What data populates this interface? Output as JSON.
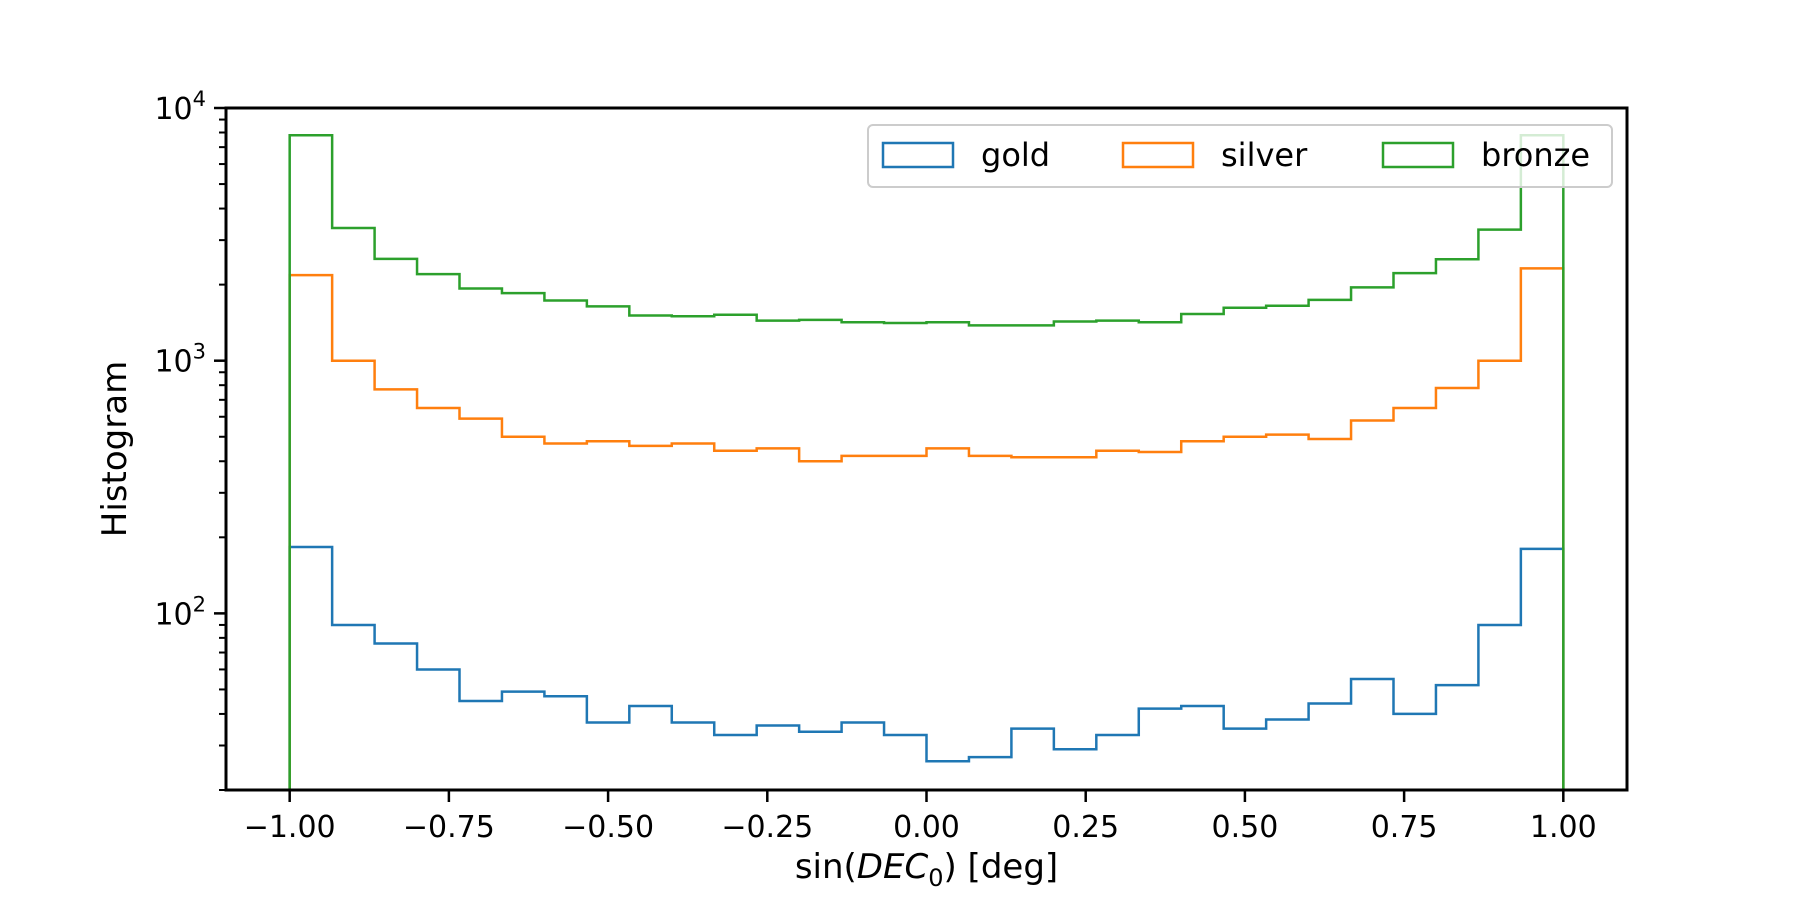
{
  "chart_data": {
    "type": "step-histogram",
    "title": "",
    "xlabel": {
      "prefix": "sin(",
      "italic": "DEC",
      "subscript": "0",
      "suffix": ") [deg]"
    },
    "ylabel": "Histogram",
    "yscale": "log",
    "xlim": [
      -1.1,
      1.1
    ],
    "ylim": [
      20,
      10000
    ],
    "xticks": [
      -1.0,
      -0.75,
      -0.5,
      -0.25,
      0.0,
      0.25,
      0.5,
      0.75,
      1.0
    ],
    "xtick_labels": [
      "−1.00",
      "−0.75",
      "−0.50",
      "−0.25",
      "0.00",
      "0.25",
      "0.50",
      "0.75",
      "1.00"
    ],
    "yticks": [
      {
        "value": 100,
        "base": "10",
        "exp": "2"
      },
      {
        "value": 1000,
        "base": "10",
        "exp": "3"
      },
      {
        "value": 10000,
        "base": "10",
        "exp": "4"
      }
    ],
    "bin_start": -1.0,
    "bin_end": 1.0,
    "legend": {
      "position": "upper-right",
      "columns": 3
    },
    "series": [
      {
        "name": "gold",
        "color": "#1f77b4",
        "values": [
          183,
          90,
          76,
          60,
          45,
          49,
          47,
          37,
          43,
          37,
          33,
          36,
          34,
          37,
          33,
          26,
          27,
          35,
          29,
          33,
          42,
          43,
          35,
          38,
          44,
          55,
          40,
          52,
          90,
          180
        ]
      },
      {
        "name": "silver",
        "color": "#ff7f0e",
        "values": [
          2180,
          1000,
          770,
          650,
          590,
          500,
          470,
          480,
          460,
          470,
          440,
          450,
          400,
          420,
          420,
          450,
          420,
          415,
          415,
          440,
          435,
          480,
          500,
          510,
          490,
          580,
          650,
          780,
          1000,
          2320
        ]
      },
      {
        "name": "bronze",
        "color": "#2ca02c",
        "values": [
          7800,
          3350,
          2530,
          2200,
          1930,
          1850,
          1730,
          1640,
          1510,
          1500,
          1520,
          1440,
          1450,
          1420,
          1410,
          1420,
          1380,
          1380,
          1430,
          1440,
          1420,
          1530,
          1620,
          1650,
          1740,
          1950,
          2220,
          2520,
          3300,
          7800
        ]
      }
    ]
  }
}
